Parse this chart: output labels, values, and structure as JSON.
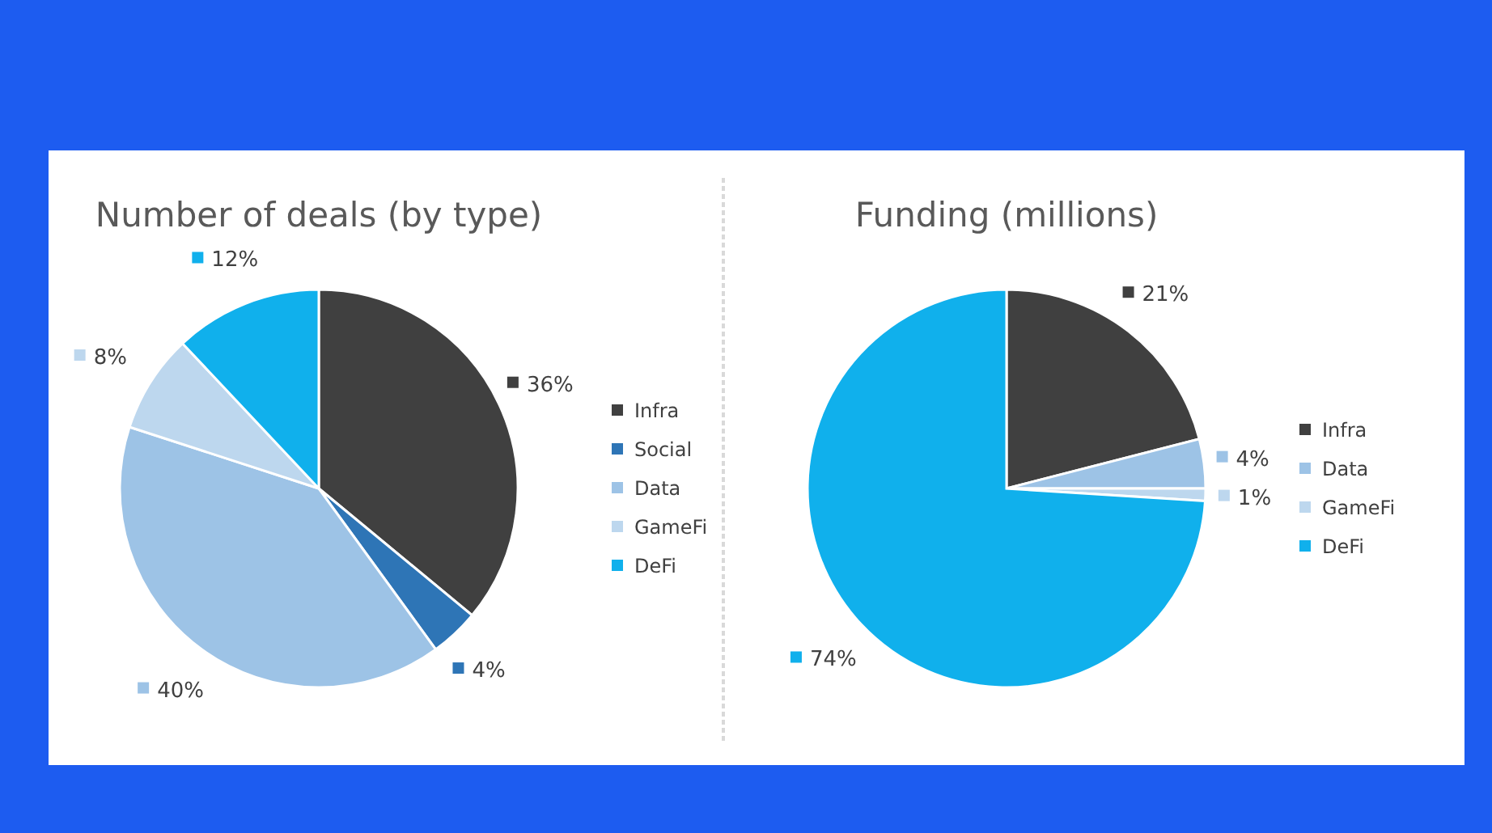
{
  "chart_data": [
    {
      "type": "pie",
      "title": "Number of deals (by type)",
      "categories": [
        "Infra",
        "Social",
        "Data",
        "GameFi",
        "DeFi"
      ],
      "values": [
        36,
        4,
        40,
        8,
        12
      ],
      "colors": [
        "#404040",
        "#2e75b6",
        "#9dc3e6",
        "#bdd7ee",
        "#10b0ec"
      ],
      "value_labels": [
        "36%",
        "4%",
        "40%",
        "8%",
        "12%"
      ],
      "legend": "right"
    },
    {
      "type": "pie",
      "title": "Funding (millions)",
      "categories": [
        "Infra",
        "Data",
        "GameFi",
        "DeFi"
      ],
      "values": [
        21,
        4,
        1,
        74
      ],
      "colors": [
        "#404040",
        "#9dc3e6",
        "#bdd7ee",
        "#10b0ec"
      ],
      "value_labels": [
        "21%",
        "4%",
        "1%",
        "74%"
      ],
      "legend": "right"
    }
  ]
}
